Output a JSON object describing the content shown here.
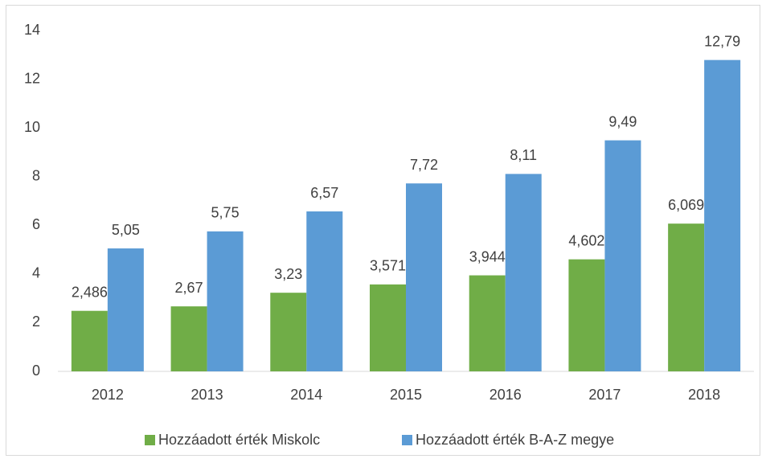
{
  "chart_data": {
    "type": "bar",
    "categories": [
      "2012",
      "2013",
      "2014",
      "2015",
      "2016",
      "2017",
      "2018"
    ],
    "series": [
      {
        "name": "Hozzáadott érték Miskolc",
        "color": "#70ad47",
        "values": [
          2.486,
          2.67,
          3.23,
          3.571,
          3.944,
          4.602,
          6.069
        ],
        "value_labels": [
          "2,486",
          "2,67",
          "3,23",
          "3,571",
          "3,944",
          "4,602",
          "6,069"
        ]
      },
      {
        "name": "Hozzáadott érték B-A-Z megye",
        "color": "#5b9bd5",
        "values": [
          5.05,
          5.75,
          6.57,
          7.72,
          8.11,
          9.49,
          12.79
        ],
        "value_labels": [
          "5,05",
          "5,75",
          "6,57",
          "7,72",
          "8,11",
          "9,49",
          "12,79"
        ]
      }
    ],
    "ylim": [
      0,
      14
    ],
    "yticks": [
      0,
      2,
      4,
      6,
      8,
      10,
      12,
      14
    ],
    "grid": false,
    "legend": "bottom"
  }
}
